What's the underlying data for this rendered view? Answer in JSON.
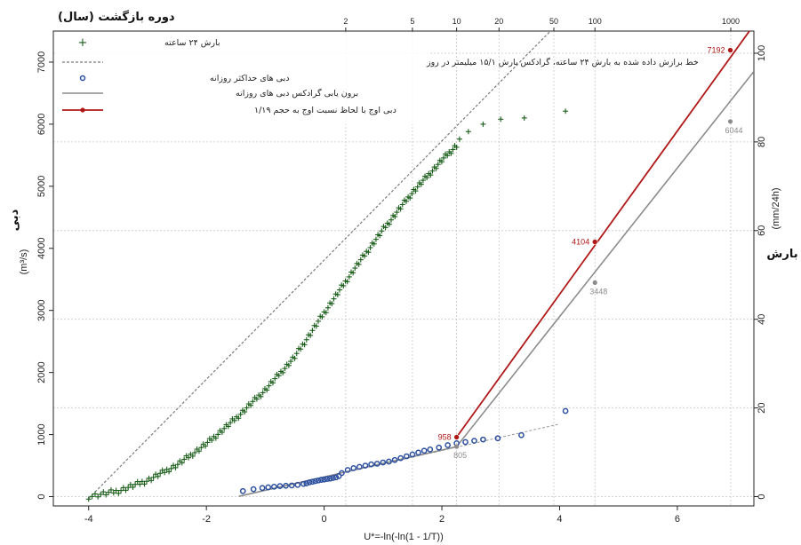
{
  "chart_data": {
    "type": "scatter",
    "title_top": "دوره بازگشت (سال)",
    "xlabel": "U*=-ln(-ln(1 - 1/T))",
    "ylabel_left": "دبی",
    "ylabel_left_unit": "(m³/s)",
    "ylabel_right": "بارش",
    "ylabel_right_unit": "(mm/24h)",
    "xlim": [
      -4.6,
      7.3
    ],
    "ylim_left": [
      -150,
      7500
    ],
    "ylim_right": [
      -2.1,
      105
    ],
    "x_ticks": [
      -4,
      -2,
      0,
      2,
      4,
      6
    ],
    "x_tick_labels": [
      "-4",
      "-2",
      "0",
      "2",
      "4",
      "6"
    ],
    "y_left_ticks": [
      0,
      1000,
      2000,
      3000,
      4000,
      5000,
      6000,
      7000
    ],
    "y_left_tick_labels": [
      "0",
      "1000",
      "2000",
      "3000",
      "4000",
      "5000",
      "6000",
      "7000"
    ],
    "y_right_ticks": [
      0,
      20,
      40,
      60,
      80,
      100
    ],
    "y_right_tick_labels": [
      "0",
      "20",
      "40",
      "60",
      "80",
      "100"
    ],
    "top_ticks": [
      2,
      5,
      10,
      20,
      50,
      100,
      1000
    ],
    "top_tick_labels": [
      "2",
      "5",
      "10",
      "20",
      "50",
      "100",
      "1000"
    ],
    "grid": true,
    "legend_position": "top-left",
    "colors": {
      "rain": "#1a5e1a",
      "fit": "#7a7a7a",
      "flow": "#2c4f9e",
      "gradex": "#8c8c8c",
      "peak": "#b01818",
      "grid": "#c8c8c8"
    },
    "legend": [
      {
        "label": "بارش ۲۴ ساعته",
        "style": "plus"
      },
      {
        "label": "خط برازش داده شده به بارش ۲۴ ساعته، گرادکس بارش ۱۵/۱ میلیمتر در روز",
        "style": "dashed"
      },
      {
        "label": "دبی های حداکثر روزانه",
        "style": "circle"
      },
      {
        "label": "برون یابی گرادکس دبی های روزانه",
        "style": "gray-line"
      },
      {
        "label": "دبی اوج با لحاظ نسبت اوج به حجم ۱/۱۹",
        "style": "red-line"
      }
    ],
    "rain_points": {
      "x_start": -4.0,
      "x_end": 2.25,
      "count": 180,
      "knots_x": [
        -4.0,
        -3.5,
        -3.0,
        -2.5,
        -2.0,
        -1.5,
        -1.0,
        -0.5,
        0.0,
        0.5,
        1.0,
        1.5,
        2.0,
        2.25
      ],
      "knots_y": [
        0,
        90,
        260,
        510,
        850,
        1260,
        1720,
        2250,
        2960,
        3650,
        4300,
        4900,
        5420,
        5660
      ],
      "extra_x": [
        2.3,
        2.45,
        2.7,
        3.0,
        3.4,
        4.1
      ],
      "extra_y": [
        5760,
        5880,
        6000,
        6080,
        6100,
        6210
      ]
    },
    "fit_line": {
      "x": [
        -4.0,
        4.0
      ],
      "y": [
        -30,
        7650
      ]
    },
    "flow_points": {
      "x": [
        -1.38,
        -1.2,
        -1.05,
        -0.95,
        -0.85,
        -0.75,
        -0.65,
        -0.55,
        -0.45,
        -0.35,
        -0.3,
        -0.25,
        -0.2,
        -0.15,
        -0.1,
        -0.05,
        0.0,
        0.05,
        0.1,
        0.15,
        0.2,
        0.25,
        0.3,
        0.4,
        0.5,
        0.6,
        0.7,
        0.8,
        0.9,
        1.0,
        1.1,
        1.2,
        1.3,
        1.4,
        1.5,
        1.6,
        1.7,
        1.8,
        1.95,
        2.1,
        2.25,
        2.4,
        2.55,
        2.7,
        2.95,
        3.35,
        4.1
      ],
      "y": [
        90,
        120,
        140,
        150,
        160,
        170,
        175,
        180,
        190,
        205,
        215,
        230,
        240,
        250,
        260,
        270,
        275,
        285,
        290,
        300,
        310,
        330,
        380,
        430,
        460,
        480,
        500,
        520,
        530,
        550,
        565,
        590,
        620,
        650,
        680,
        710,
        740,
        760,
        790,
        830,
        860,
        880,
        900,
        920,
        940,
        990,
        1380
      ]
    },
    "flow_fit": {
      "x": [
        -1.45,
        4.0
      ],
      "y": [
        5,
        1170
      ]
    },
    "gradex_line": {
      "x": [
        -1.45,
        2.25,
        7.3
      ],
      "y": [
        5,
        805,
        6850
      ]
    },
    "peak_line": {
      "x": [
        2.25,
        7.3
      ],
      "y": [
        958,
        7600
      ]
    },
    "annotations": [
      {
        "x": 2.25,
        "y": 958,
        "label": "958",
        "color": "peak"
      },
      {
        "x": 2.25,
        "y": 805,
        "label": "805",
        "color": "gradex"
      },
      {
        "x": 4.6,
        "y": 4104,
        "label": "4104",
        "color": "peak"
      },
      {
        "x": 4.6,
        "y": 3448,
        "label": "3448",
        "color": "gradex"
      },
      {
        "x": 6.9,
        "y": 7192,
        "label": "7192",
        "color": "peak"
      },
      {
        "x": 6.9,
        "y": 6044,
        "label": "6044",
        "color": "gradex"
      }
    ]
  }
}
